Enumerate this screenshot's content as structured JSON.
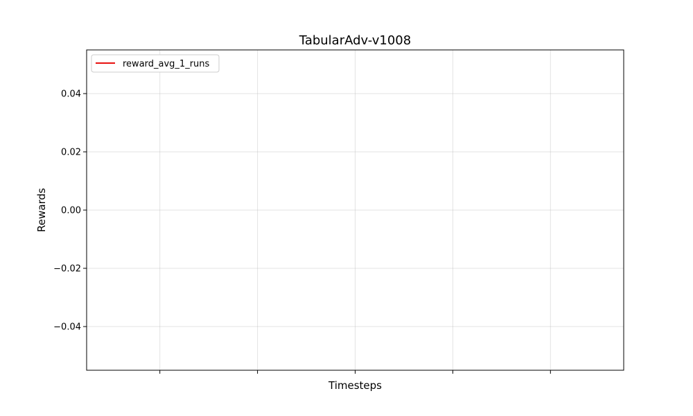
{
  "chart_data": {
    "type": "line",
    "title": "TabularAdv-v1008",
    "xlabel": "Timesteps",
    "ylabel": "Rewards",
    "ylim": [
      -0.055,
      0.055
    ],
    "y_ticks": [
      0.04,
      0.02,
      0.0,
      -0.02,
      -0.04
    ],
    "y_tick_labels": [
      "0.04",
      "0.02",
      "0.00",
      "−0.02",
      "−0.04"
    ],
    "x_tick_count": 5,
    "x_tick_labels": [
      "",
      "",
      "",
      "",
      ""
    ],
    "grid": true,
    "legend_position": "upper-left",
    "series": [
      {
        "name": "reward_avg_1_runs",
        "color": "#e8100f",
        "x": [],
        "y": []
      }
    ]
  }
}
